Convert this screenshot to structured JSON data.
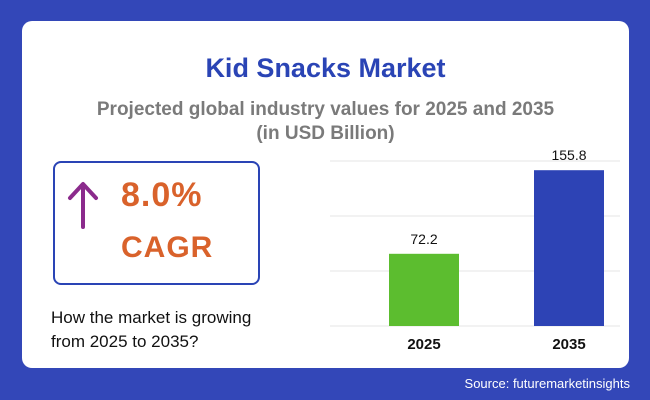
{
  "chart_data": {
    "type": "bar",
    "title": "Kid Snacks Market",
    "subtitle_line1": "Projected global industry values for 2025 and 2035",
    "subtitle_line2": "(in USD Billion)",
    "categories": [
      "2025",
      "2035"
    ],
    "values": [
      72.2,
      155.8
    ],
    "bar_colors": [
      "#5cbd2f",
      "#2d43b5"
    ],
    "ylim": [
      0,
      165
    ],
    "grid": true
  },
  "cagr": {
    "value": "8.0%",
    "label": "CAGR",
    "arrow_icon": "up-arrow-icon",
    "arrow_color": "#8b2a8c",
    "text_color": "#d9622b"
  },
  "growth_text": {
    "line1": "How the market is growing",
    "line2": "from 2025 to 2035?"
  },
  "source": "Source: futuremarketinsights",
  "colors": {
    "background": "#3347b8",
    "title": "#2a44b5",
    "subtitle": "#7a7a7a"
  }
}
